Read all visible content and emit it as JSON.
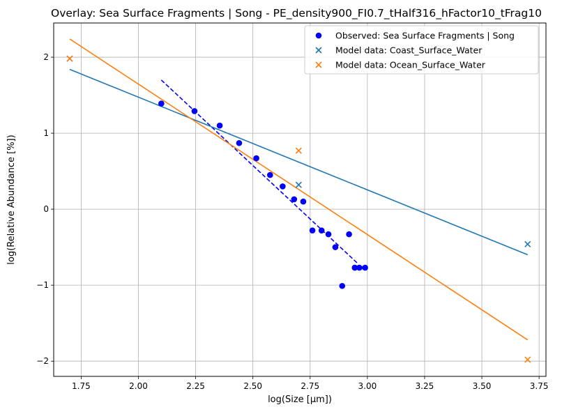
{
  "chart_data": {
    "type": "scatter",
    "title": "Overlay: Sea Surface Fragments | Song - PE_density900_FI0.7_tHalf316_hFactor10_tFrag10",
    "xlabel": "log(Size [µm])",
    "ylabel": "log(Relative Abundance [%])",
    "xlim": [
      1.63,
      3.78
    ],
    "ylim": [
      -2.2,
      2.45
    ],
    "xticks": [
      1.75,
      2.0,
      2.25,
      2.5,
      2.75,
      3.0,
      3.25,
      3.5,
      3.75
    ],
    "xtick_labels": [
      "1.75",
      "2.00",
      "2.25",
      "2.50",
      "2.75",
      "3.00",
      "3.25",
      "3.50",
      "3.75"
    ],
    "yticks": [
      -2,
      -1,
      0,
      1,
      2
    ],
    "ytick_labels": [
      "−2",
      "−1",
      "0",
      "1",
      "2"
    ],
    "grid": true,
    "legend_position": "top-right",
    "series": [
      {
        "name": "Observed: Sea Surface Fragments | Song",
        "kind": "scatter-dot",
        "color": "#0000ff",
        "points": [
          [
            2.1,
            1.39
          ],
          [
            2.245,
            1.29
          ],
          [
            2.355,
            1.1
          ],
          [
            2.44,
            0.87
          ],
          [
            2.515,
            0.67
          ],
          [
            2.575,
            0.45
          ],
          [
            2.63,
            0.3
          ],
          [
            2.68,
            0.13
          ],
          [
            2.72,
            0.1
          ],
          [
            2.76,
            -0.28
          ],
          [
            2.8,
            -0.28
          ],
          [
            2.83,
            -0.33
          ],
          [
            2.86,
            -0.5
          ],
          [
            2.89,
            -1.01
          ],
          [
            2.92,
            -0.33
          ],
          [
            2.945,
            -0.77
          ],
          [
            2.965,
            -0.77
          ],
          [
            2.99,
            -0.77
          ]
        ]
      },
      {
        "name": "Model data: Coast_Surface_Water",
        "kind": "scatter-x",
        "color": "#1f77b4",
        "points": [
          [
            1.7,
            1.98
          ],
          [
            2.7,
            0.32
          ],
          [
            3.7,
            -0.46
          ]
        ]
      },
      {
        "name": "Model data: Ocean_Surface_Water",
        "kind": "scatter-x",
        "color": "#ff7f0e",
        "points": [
          [
            1.7,
            1.98
          ],
          [
            2.7,
            0.77
          ],
          [
            3.7,
            -1.98
          ]
        ]
      }
    ],
    "fit_lines": [
      {
        "color": "#0000ff",
        "style": "dashed",
        "from": [
          2.1,
          1.7
        ],
        "to": [
          2.96,
          -0.72
        ]
      },
      {
        "color": "#1f77b4",
        "style": "solid",
        "from": [
          1.7,
          1.84
        ],
        "to": [
          3.7,
          -0.6
        ]
      },
      {
        "color": "#ff7f0e",
        "style": "solid",
        "from": [
          1.7,
          2.24
        ],
        "to": [
          3.7,
          -1.72
        ]
      }
    ]
  }
}
